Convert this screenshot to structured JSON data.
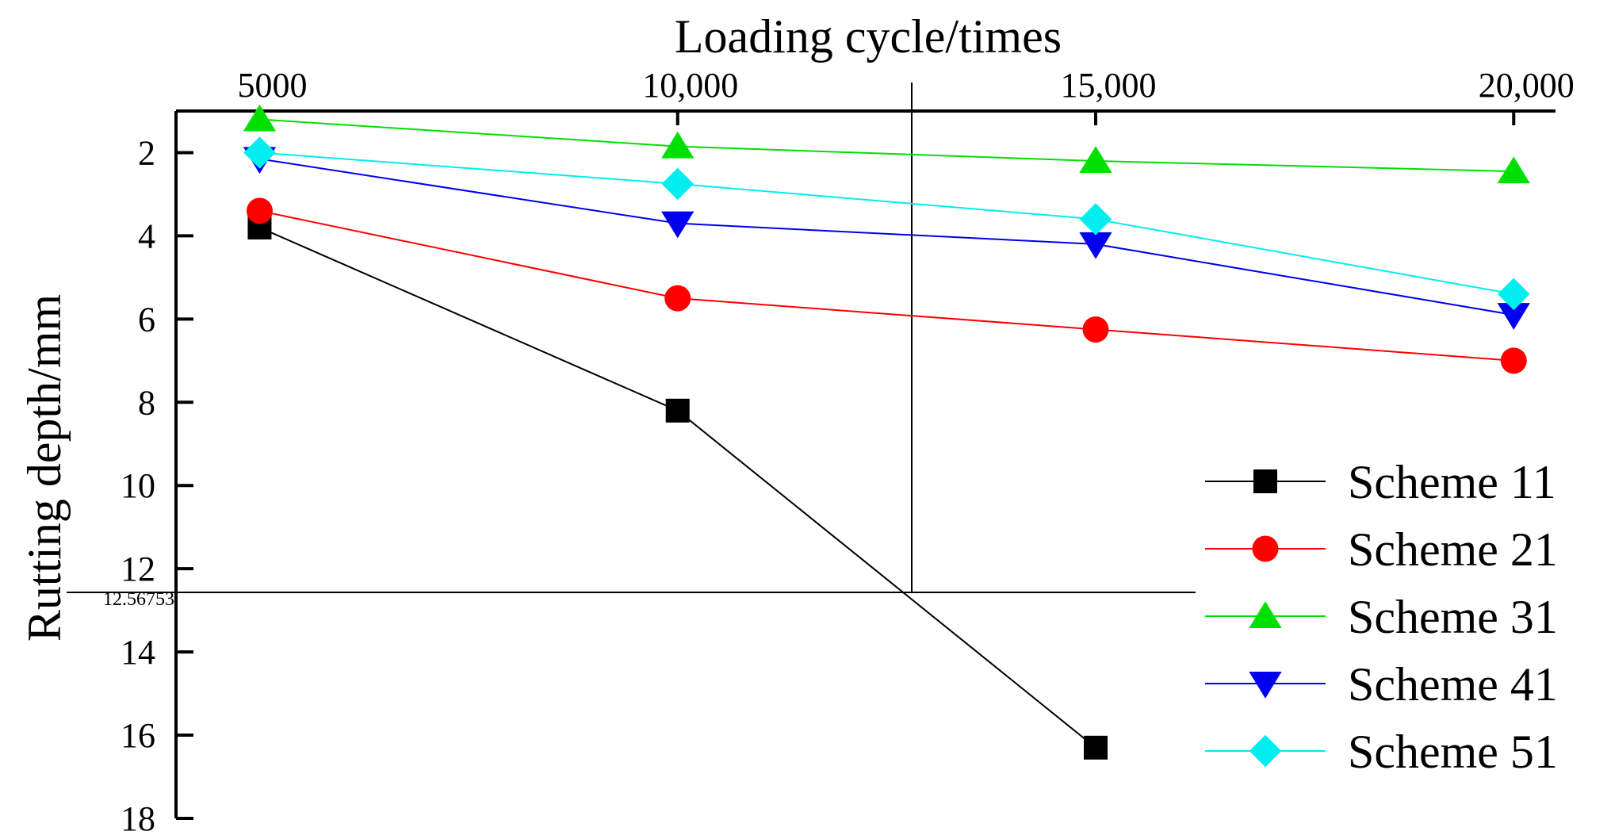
{
  "chart_data": {
    "type": "line",
    "xlabel": "Loading cycle/times",
    "ylabel": "Rutting depth/mm",
    "x_axis_position": "top",
    "y_axis_inverted": true,
    "x": [
      5000,
      10000,
      15000,
      20000
    ],
    "x_tick_labels": [
      "5000",
      "10,000",
      "15,000",
      "20,000"
    ],
    "y_ticks": [
      2,
      4,
      6,
      8,
      10,
      12,
      14,
      16,
      18
    ],
    "y_tick_labels": [
      "2",
      "4",
      "6",
      "8",
      "10",
      "12",
      "14",
      "16",
      "18"
    ],
    "ylim": [
      1,
      18
    ],
    "xlim": [
      4000,
      20500
    ],
    "crosshair": {
      "x": 12800,
      "y": 12.56753,
      "label": "12.56753"
    },
    "legend_position": "right",
    "series": [
      {
        "name": "Scheme 11",
        "color": "#000000",
        "marker": "square",
        "x": [
          5000,
          10000,
          15000
        ],
        "values": [
          3.8,
          8.2,
          16.3
        ]
      },
      {
        "name": "Scheme 21",
        "color": "#ff0000",
        "marker": "circle",
        "x": [
          5000,
          10000,
          15000,
          20000
        ],
        "values": [
          3.4,
          5.5,
          6.25,
          7.0
        ]
      },
      {
        "name": "Scheme 31",
        "color": "#00e000",
        "marker": "triangle-up",
        "x": [
          5000,
          10000,
          15000,
          20000
        ],
        "values": [
          1.2,
          1.85,
          2.2,
          2.45
        ]
      },
      {
        "name": "Scheme 41",
        "color": "#0000ee",
        "marker": "triangle-down",
        "x": [
          5000,
          10000,
          15000,
          20000
        ],
        "values": [
          2.15,
          3.7,
          4.2,
          5.9
        ]
      },
      {
        "name": "Scheme 51",
        "color": "#00eeee",
        "marker": "diamond",
        "x": [
          5000,
          10000,
          15000,
          20000
        ],
        "values": [
          2.0,
          2.75,
          3.6,
          5.4
        ]
      }
    ]
  }
}
